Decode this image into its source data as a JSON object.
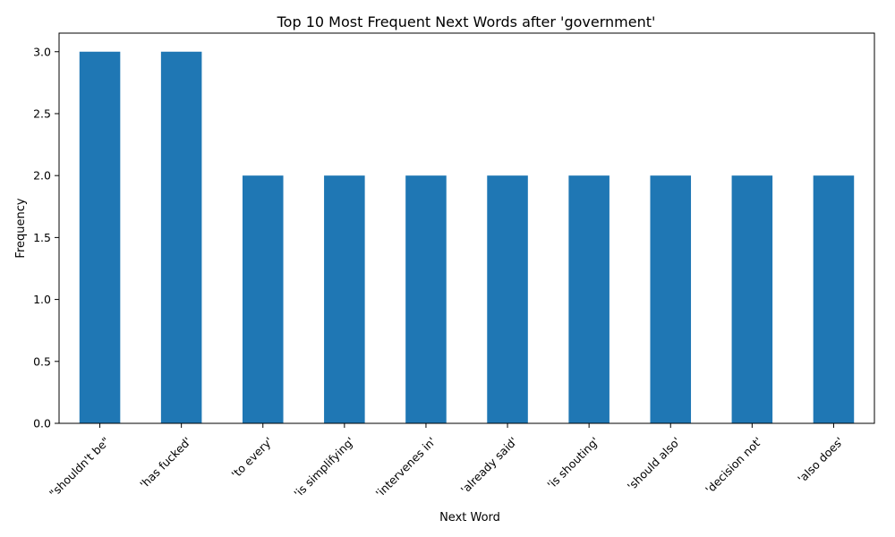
{
  "chart_data": {
    "type": "bar",
    "title": "Top 10 Most Frequent Next Words after 'government'",
    "xlabel": "Next Word",
    "ylabel": "Frequency",
    "categories": [
      "\"shouldn't be\"",
      "'has fucked'",
      "'to every'",
      "'is simplifying'",
      "'intervenes in'",
      "'already said'",
      "'is shouting'",
      "'should also'",
      "'decision not'",
      "'also does'"
    ],
    "values": [
      3,
      3,
      2,
      2,
      2,
      2,
      2,
      2,
      2,
      2
    ],
    "ylim": [
      0,
      3.15
    ],
    "yticks": [
      "0.0",
      "0.5",
      "1.0",
      "1.5",
      "2.0",
      "2.5",
      "3.0"
    ],
    "grid": false,
    "bar_color": "#1f77b4"
  }
}
